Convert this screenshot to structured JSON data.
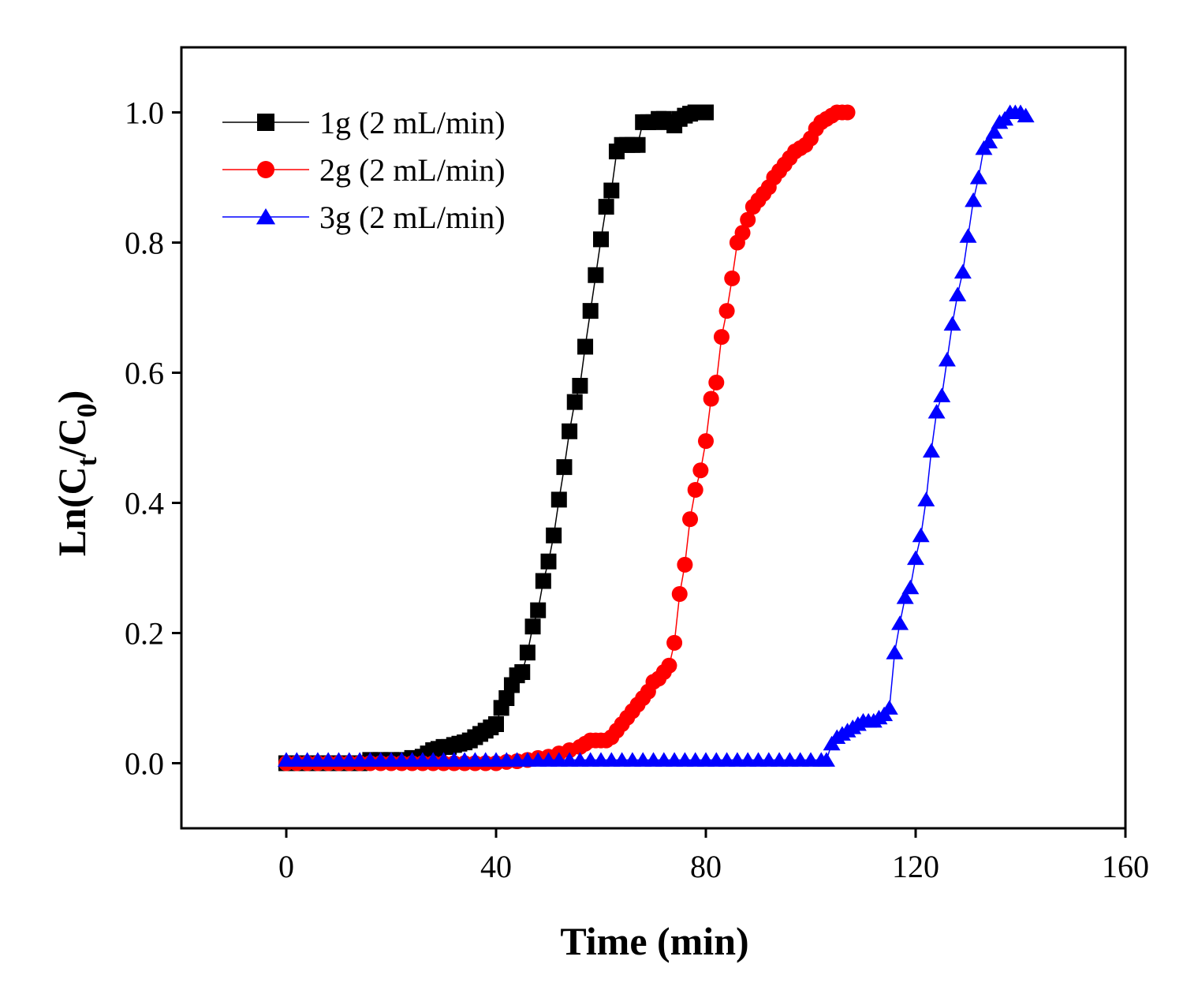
{
  "chart_data": {
    "type": "scatter",
    "xlabel": "Time (min)",
    "ylabel": "Ln(Ct/C0)",
    "ylabel_parts": {
      "main": "Ln(C",
      "sub1": "t",
      "mid": "/C",
      "sub2": "0",
      "end": ")"
    },
    "xlim": [
      -20,
      160
    ],
    "ylim": [
      -0.1,
      1.1
    ],
    "xticks": [
      0,
      40,
      80,
      120,
      160
    ],
    "xtick_labels": [
      "0",
      "40",
      "80",
      "120",
      "160"
    ],
    "yticks": [
      0.0,
      0.2,
      0.4,
      0.6,
      0.8,
      1.0
    ],
    "ytick_labels": [
      "0.0",
      "0.2",
      "0.4",
      "0.6",
      "0.8",
      "1.0"
    ],
    "legend_position": "top-left",
    "series": [
      {
        "name": "1g (2 mL/min)",
        "color": "#000000",
        "marker": "square",
        "x": [
          0,
          2,
          4,
          6,
          8,
          10,
          12,
          14,
          16,
          18,
          20,
          22,
          24,
          26,
          27,
          28,
          29,
          30,
          31,
          32,
          33,
          34,
          35,
          36,
          37,
          38,
          39,
          40,
          41,
          42,
          43,
          44,
          45,
          46,
          47,
          48,
          49,
          50,
          51,
          52,
          53,
          54,
          55,
          56,
          57,
          58,
          59,
          60,
          61,
          62,
          63,
          64,
          65,
          66,
          67,
          68,
          69,
          70,
          71,
          72,
          73,
          74,
          75,
          76,
          77,
          78,
          79,
          80
        ],
        "y": [
          0.0,
          0.0,
          0.0,
          0.0,
          0.0,
          0.0,
          0.0,
          0.0,
          0.005,
          0.005,
          0.005,
          0.005,
          0.008,
          0.01,
          0.015,
          0.02,
          0.022,
          0.025,
          0.025,
          0.028,
          0.03,
          0.032,
          0.035,
          0.04,
          0.045,
          0.05,
          0.055,
          0.06,
          0.085,
          0.1,
          0.12,
          0.135,
          0.14,
          0.17,
          0.21,
          0.235,
          0.28,
          0.31,
          0.35,
          0.405,
          0.455,
          0.51,
          0.555,
          0.58,
          0.64,
          0.695,
          0.75,
          0.805,
          0.855,
          0.88,
          0.94,
          0.95,
          0.95,
          0.95,
          0.95,
          0.985,
          0.985,
          0.985,
          0.99,
          0.99,
          0.985,
          0.98,
          0.99,
          0.995,
          0.998,
          1.0,
          1.0,
          1.0
        ]
      },
      {
        "name": "2g (2 mL/min)",
        "color": "#ff0000",
        "marker": "circle",
        "x": [
          0,
          2,
          4,
          6,
          8,
          10,
          12,
          14,
          16,
          18,
          20,
          22,
          24,
          26,
          28,
          30,
          32,
          34,
          36,
          38,
          40,
          42,
          44,
          46,
          48,
          50,
          52,
          54,
          56,
          57,
          58,
          59,
          60,
          61,
          62,
          63,
          64,
          65,
          66,
          67,
          68,
          69,
          70,
          71,
          72,
          73,
          74,
          75,
          76,
          77,
          78,
          79,
          80,
          81,
          82,
          83,
          84,
          85,
          86,
          87,
          88,
          89,
          90,
          91,
          92,
          93,
          94,
          95,
          96,
          97,
          98,
          99,
          100,
          101,
          102,
          103,
          104,
          105,
          106,
          107
        ],
        "y": [
          0.0,
          0.0,
          0.0,
          0.0,
          0.0,
          0.0,
          0.0,
          0.0,
          0.0,
          0.0,
          0.0,
          0.0,
          0.0,
          0.0,
          0.0,
          0.0,
          0.0,
          0.0,
          0.0,
          0.0,
          0.0,
          0.002,
          0.003,
          0.005,
          0.008,
          0.01,
          0.015,
          0.02,
          0.025,
          0.03,
          0.035,
          0.035,
          0.035,
          0.035,
          0.04,
          0.05,
          0.06,
          0.07,
          0.08,
          0.09,
          0.1,
          0.11,
          0.125,
          0.13,
          0.14,
          0.15,
          0.185,
          0.26,
          0.305,
          0.375,
          0.42,
          0.45,
          0.495,
          0.56,
          0.585,
          0.655,
          0.695,
          0.745,
          0.8,
          0.815,
          0.835,
          0.855,
          0.865,
          0.875,
          0.885,
          0.9,
          0.91,
          0.92,
          0.93,
          0.94,
          0.945,
          0.95,
          0.96,
          0.975,
          0.985,
          0.99,
          0.995,
          1.0,
          1.0,
          1.0
        ]
      },
      {
        "name": "3g (2 mL/min)",
        "color": "#0000ff",
        "marker": "triangle",
        "x": [
          0,
          2,
          4,
          6,
          8,
          10,
          12,
          14,
          16,
          18,
          20,
          22,
          24,
          26,
          28,
          30,
          32,
          34,
          36,
          38,
          40,
          42,
          44,
          46,
          48,
          50,
          52,
          54,
          56,
          58,
          60,
          62,
          64,
          66,
          68,
          70,
          72,
          74,
          76,
          78,
          80,
          82,
          84,
          86,
          88,
          90,
          92,
          94,
          96,
          98,
          100,
          102,
          103,
          104,
          105,
          106,
          107,
          108,
          109,
          110,
          111,
          112,
          113,
          114,
          115,
          116,
          117,
          118,
          119,
          120,
          121,
          122,
          123,
          124,
          125,
          126,
          127,
          128,
          129,
          130,
          131,
          132,
          133,
          134,
          135,
          136,
          137,
          138,
          139,
          140,
          141
        ],
        "y": [
          0.005,
          0.005,
          0.005,
          0.005,
          0.005,
          0.005,
          0.005,
          0.005,
          0.005,
          0.005,
          0.005,
          0.005,
          0.005,
          0.005,
          0.005,
          0.005,
          0.005,
          0.005,
          0.005,
          0.005,
          0.005,
          0.005,
          0.005,
          0.005,
          0.005,
          0.005,
          0.005,
          0.005,
          0.005,
          0.005,
          0.005,
          0.005,
          0.005,
          0.005,
          0.005,
          0.005,
          0.005,
          0.005,
          0.005,
          0.005,
          0.005,
          0.005,
          0.005,
          0.005,
          0.005,
          0.005,
          0.005,
          0.005,
          0.005,
          0.005,
          0.005,
          0.005,
          0.005,
          0.03,
          0.04,
          0.045,
          0.05,
          0.055,
          0.06,
          0.065,
          0.065,
          0.065,
          0.07,
          0.075,
          0.085,
          0.17,
          0.215,
          0.255,
          0.27,
          0.315,
          0.35,
          0.405,
          0.48,
          0.54,
          0.565,
          0.62,
          0.675,
          0.72,
          0.755,
          0.81,
          0.865,
          0.9,
          0.945,
          0.955,
          0.97,
          0.985,
          0.99,
          1.0,
          1.0,
          1.0,
          0.995
        ]
      }
    ]
  }
}
